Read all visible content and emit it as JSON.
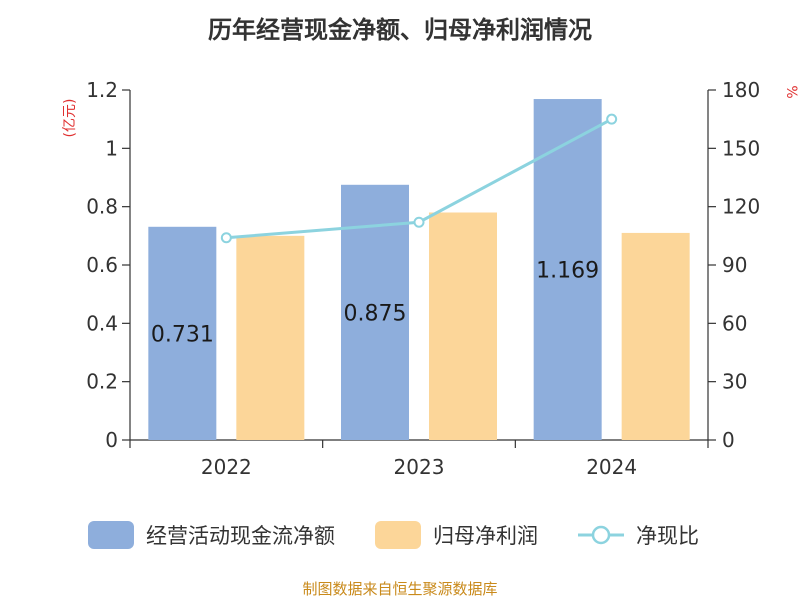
{
  "chart_data": {
    "type": "bar",
    "title": "历年经营现金净额、归母净利润情况",
    "categories": [
      "2022",
      "2023",
      "2024"
    ],
    "y_left_unit": "(亿元)",
    "y_right_unit": "%",
    "y_left_ticks": [
      "0",
      "0.2",
      "0.4",
      "0.6",
      "0.8",
      "1",
      "1.2"
    ],
    "y_right_ticks": [
      "0",
      "30",
      "60",
      "90",
      "120",
      "150",
      "180"
    ],
    "ylim_left": [
      0,
      1.2
    ],
    "ylim_right": [
      0,
      180
    ],
    "grid": false,
    "legend_position": "bottom",
    "series": [
      {
        "name": "经营活动现金流净额",
        "type": "bar",
        "axis": "left",
        "color": "#8eaedc",
        "values": [
          0.731,
          0.875,
          1.169
        ],
        "labels": [
          "0.731",
          "0.875",
          "1.169"
        ]
      },
      {
        "name": "归母净利润",
        "type": "bar",
        "axis": "left",
        "color": "#fcd699",
        "values": [
          0.7,
          0.78,
          0.71
        ]
      },
      {
        "name": "净现比",
        "type": "line",
        "axis": "right",
        "color": "#8cd3df",
        "values": [
          104,
          112,
          165
        ]
      }
    ],
    "source": "制图数据来自恒生聚源数据库"
  }
}
